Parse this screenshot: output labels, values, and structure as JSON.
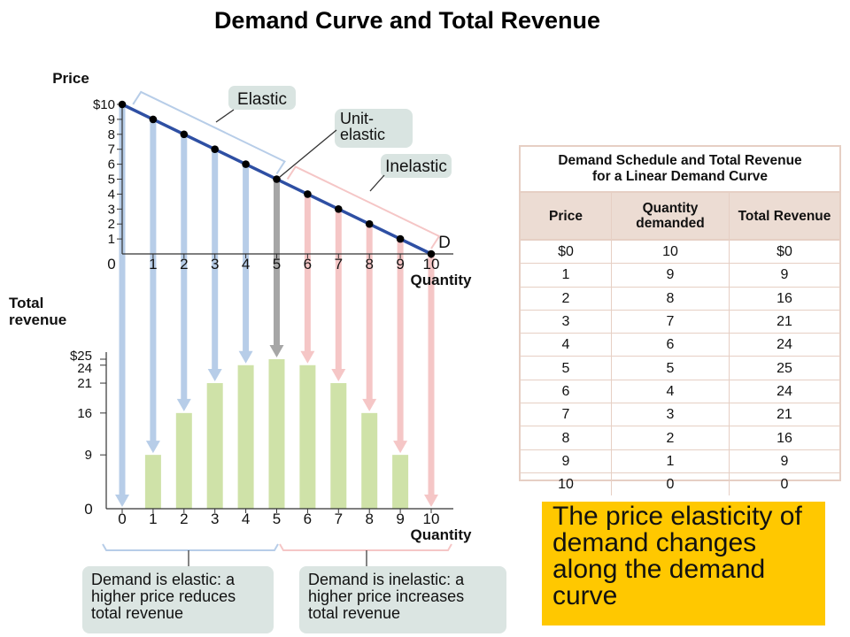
{
  "title": "Demand Curve and Total Revenue",
  "colors": {
    "demand_line": "#2e4fa3",
    "elastic_arrow": "#b7cde8",
    "unit_arrow": "#a6a6a6",
    "inelastic_arrow": "#f5c6c6",
    "bars": "#cfe2a8",
    "label_box": "#d9e4e1",
    "callout": "#ffc800",
    "table_header": "#ecdcd3"
  },
  "chart_data": [
    {
      "type": "line",
      "name": "demand",
      "ylabel": "Price",
      "xlabel": "Quantity",
      "x": [
        0,
        1,
        2,
        3,
        4,
        5,
        6,
        7,
        8,
        9,
        10
      ],
      "y": [
        10,
        9,
        8,
        7,
        6,
        5,
        4,
        3,
        2,
        1,
        0
      ],
      "xlim": [
        0,
        10
      ],
      "ylim": [
        0,
        10
      ],
      "x_ticks": [
        "0",
        "1",
        "2",
        "3",
        "4",
        "5",
        "6",
        "7",
        "8",
        "9",
        "10"
      ],
      "y_ticks": [
        "$10",
        "9",
        "8",
        "7",
        "6",
        "5",
        "4",
        "3",
        "2",
        "1"
      ],
      "origin_label": "0",
      "curve_label": "D",
      "regions": [
        {
          "label": "Elastic",
          "from": 0,
          "to": 5
        },
        {
          "label": "Unit-\nelastic",
          "at": 5
        },
        {
          "label": "Inelastic",
          "from": 5,
          "to": 10
        }
      ]
    },
    {
      "type": "bar",
      "name": "total_revenue",
      "ylabel": "Total\nrevenue",
      "xlabel": "Quantity",
      "x": [
        0,
        1,
        2,
        3,
        4,
        5,
        6,
        7,
        8,
        9,
        10
      ],
      "values": [
        0,
        9,
        16,
        21,
        24,
        25,
        24,
        21,
        16,
        9,
        0
      ],
      "ylim": [
        0,
        25
      ],
      "x_ticks": [
        "0",
        "1",
        "2",
        "3",
        "4",
        "5",
        "6",
        "7",
        "8",
        "9",
        "10"
      ],
      "y_ticks": [
        {
          "label": "$25",
          "value": 25
        },
        {
          "label": "24",
          "value": 24
        },
        {
          "label": "21",
          "value": 21
        },
        {
          "label": "16",
          "value": 16
        },
        {
          "label": "9",
          "value": 9
        },
        {
          "label": "0",
          "value": 0
        }
      ]
    }
  ],
  "table": {
    "title_line1": "Demand Schedule and Total Revenue",
    "title_line2": "for a Linear Demand Curve",
    "headers": [
      "Price",
      "Quantity demanded",
      "Total Revenue"
    ],
    "rows": [
      [
        "$0",
        "10",
        "$0"
      ],
      [
        "1",
        "9",
        "9"
      ],
      [
        "2",
        "8",
        "16"
      ],
      [
        "3",
        "7",
        "21"
      ],
      [
        "4",
        "6",
        "24"
      ],
      [
        "5",
        "5",
        "25"
      ],
      [
        "6",
        "4",
        "24"
      ],
      [
        "7",
        "3",
        "21"
      ],
      [
        "8",
        "2",
        "16"
      ],
      [
        "9",
        "1",
        "9"
      ],
      [
        "10",
        "0",
        "0"
      ]
    ]
  },
  "notes": {
    "elastic": "Demand is elastic: a higher price reduces total revenue",
    "inelastic": "Demand is inelastic: a higher price increases total revenue"
  },
  "callout": "The price elasticity of demand changes along the demand curve"
}
